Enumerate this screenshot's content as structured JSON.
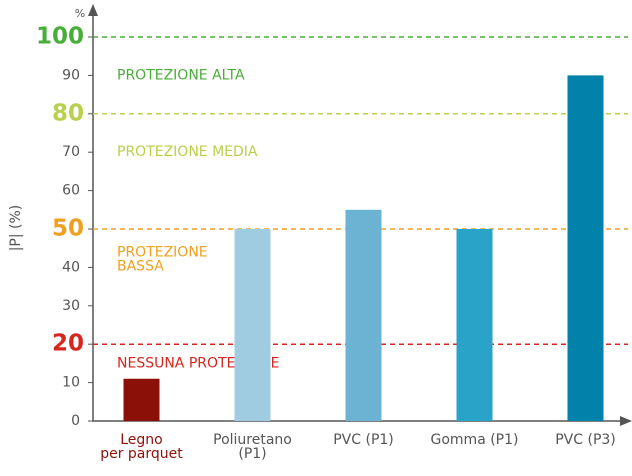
{
  "chart_data": {
    "type": "bar",
    "y_label": "|P| (%)",
    "y_unit": "%",
    "categories": [
      [
        "Legno",
        "per parquet"
      ],
      [
        "Poliuretano",
        "(P1)"
      ],
      [
        "PVC (P1)"
      ],
      [
        "Gomma (P1)"
      ],
      [
        "PVC (P3)"
      ]
    ],
    "category_colors": [
      "#8c1209",
      "#555555",
      "#555555",
      "#555555",
      "#555555"
    ],
    "values": [
      11,
      50,
      55,
      50,
      90
    ],
    "colors": [
      "#8b1008",
      "#a0cce1",
      "#6cb3d3",
      "#2aa3c8",
      "#0082aa"
    ],
    "ylim": [
      0,
      100
    ],
    "yticks": [
      0,
      10,
      20,
      30,
      40,
      50,
      60,
      70,
      80,
      90,
      100
    ],
    "thresholds": [
      {
        "value": 20,
        "color": "#d7261e"
      },
      {
        "value": 50,
        "color": "#f0a020"
      },
      {
        "value": 80,
        "color": "#b8d04a"
      },
      {
        "value": 100,
        "color": "#49ad3a"
      }
    ],
    "zones": [
      {
        "lines": [
          "PROTEZIONE ALTA"
        ],
        "y": 90,
        "color": "#49ad3a"
      },
      {
        "lines": [
          "PROTEZIONE MEDIA"
        ],
        "y": 70,
        "color": "#b8d04a"
      },
      {
        "lines": [
          "PROTEZIONE",
          "BASSA"
        ],
        "y": 42,
        "color": "#f0a020"
      },
      {
        "lines": [
          "NESSUNA PROTEZIONE"
        ],
        "y": 15,
        "color": "#d7261e"
      }
    ]
  }
}
